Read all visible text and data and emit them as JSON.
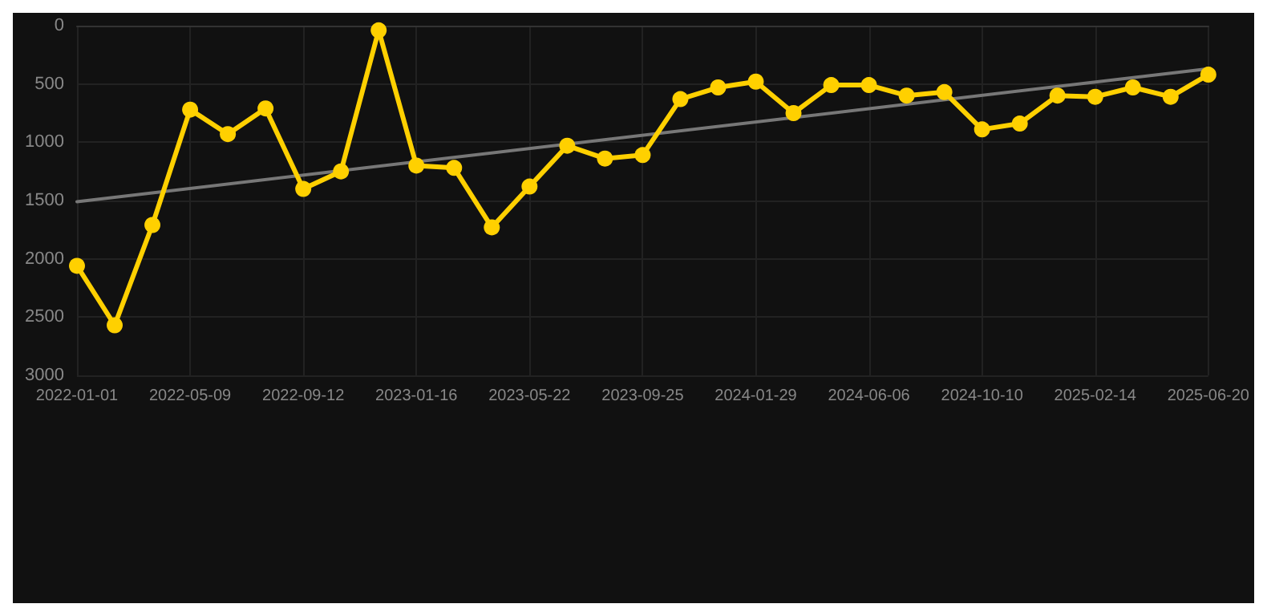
{
  "chart_data": {
    "type": "line",
    "categories": [
      "2022-01-01",
      null,
      null,
      "2022-05-09",
      null,
      null,
      "2022-09-12",
      null,
      null,
      "2023-01-16",
      null,
      null,
      "2023-05-22",
      null,
      null,
      "2023-09-25",
      null,
      null,
      "2024-01-29",
      null,
      null,
      "2024-06-06",
      null,
      null,
      "2024-10-10",
      null,
      null,
      "2025-02-14",
      null,
      null,
      "2025-06-20"
    ],
    "series": [
      {
        "color": "#ffd000",
        "values": [
          2060,
          2570,
          1710,
          720,
          930,
          710,
          1400,
          1250,
          40,
          1200,
          1220,
          1730,
          1380,
          1030,
          1140,
          1110,
          630,
          530,
          480,
          750,
          510,
          510,
          600,
          570,
          890,
          840,
          600,
          610,
          530,
          610,
          420
        ]
      },
      {
        "type": "line",
        "color": "#777777",
        "values": [
          1510,
          null,
          null,
          null,
          null,
          null,
          null,
          null,
          null,
          null,
          null,
          null,
          null,
          null,
          null,
          null,
          null,
          null,
          null,
          null,
          null,
          null,
          null,
          null,
          null,
          null,
          null,
          null,
          null,
          null,
          370
        ],
        "marker": "none"
      }
    ],
    "ylim": [
      3000,
      0
    ],
    "yticks": [
      0,
      500,
      1000,
      1500,
      2000,
      2500,
      3000
    ],
    "grid": true,
    "marker": "circle",
    "line_style": "solid"
  }
}
